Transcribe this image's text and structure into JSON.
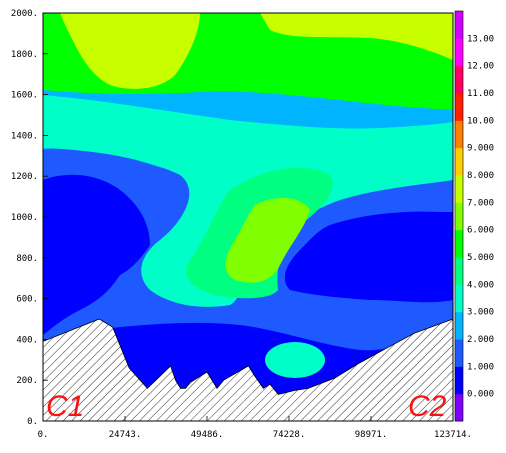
{
  "chart_data": {
    "type": "heatmap",
    "title": "",
    "xlabel": "",
    "ylabel": "",
    "xlim": [
      0,
      123714
    ],
    "ylim": [
      0,
      2000
    ],
    "x_ticks": [
      "0.",
      "24743.",
      "49486.",
      "74228.",
      "98971.",
      "123714."
    ],
    "y_ticks": [
      "2000.",
      "1800.",
      "1600.",
      "1400.",
      "1200.",
      "1000.",
      "800.",
      "600.",
      "400.",
      "200.",
      "0."
    ],
    "colorbar": {
      "levels": [
        "0.000",
        "1.000",
        "2.000",
        "3.000",
        "4.000",
        "5.000",
        "6.000",
        "7.000",
        "8.000",
        "9.000",
        "10.00",
        "11.00",
        "12.00",
        "13.00"
      ],
      "colors": [
        "#7f00ff",
        "#0000ff",
        "#1e5aff",
        "#00b4ff",
        "#00ffc8",
        "#00ff80",
        "#00ff00",
        "#80ff00",
        "#c8ff00",
        "#ffd000",
        "#ff8000",
        "#ff2000",
        "#ff0060",
        "#ff00ff",
        "#d000ff"
      ]
    },
    "terrain_profile": {
      "x": [
        0,
        17000,
        21000,
        26000,
        31500,
        38500,
        40000,
        41500,
        43000,
        44500,
        49500,
        52500,
        54500,
        62000,
        63500,
        66500,
        68500,
        71000,
        76000,
        80000,
        88000,
        95000,
        104000,
        112000,
        123714
      ],
      "y": [
        390,
        500,
        460,
        260,
        160,
        270,
        200,
        160,
        160,
        190,
        240,
        160,
        200,
        270,
        230,
        160,
        180,
        130,
        150,
        160,
        210,
        280,
        360,
        430,
        500
      ]
    },
    "annotations": [
      "C1",
      "C2"
    ]
  }
}
